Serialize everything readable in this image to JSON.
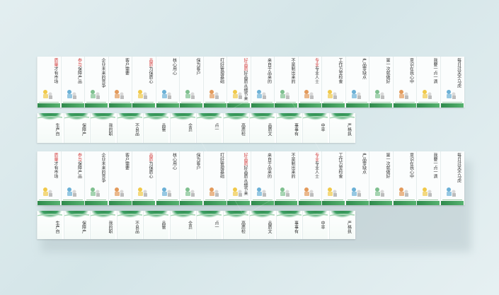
{
  "posters": [
    {
      "red": "质量",
      "text": "才有市场"
    },
    {
      "red": "参与",
      "text": "保障产品"
    },
    {
      "red": "",
      "text": "企业未来的竞争"
    },
    {
      "red": "",
      "text": "客户需要"
    },
    {
      "red": "品质",
      "text": "为保质心"
    },
    {
      "red": "",
      "text": "核心用心"
    },
    {
      "red": "",
      "text": "保为客户"
    },
    {
      "red": "",
      "text": "打好管理基础"
    },
    {
      "red": "好品质",
      "text": "好品质从细节来"
    },
    {
      "red": "",
      "text": "来自于品来的"
    },
    {
      "red": "",
      "text": "不是制出来的"
    },
    {
      "red": "专业",
      "text": "专业人士"
    },
    {
      "red": "",
      "text": "工作万里检查"
    },
    {
      "red": "",
      "text": "产品零缺点"
    },
    {
      "red": "",
      "text": "第一次就做好"
    },
    {
      "red": "",
      "text": "意识在我心中"
    },
    {
      "red": "",
      "text": "我要一点一滴"
    },
    {
      "red": "",
      "text": "每日过关不马虎"
    }
  ],
  "minis": [
    {
      "red": "",
      "text": "生产自"
    },
    {
      "red": "",
      "text": "保障产"
    },
    {
      "red": "",
      "text": "我的职"
    },
    {
      "red": "",
      "text": "不良品"
    },
    {
      "red": "",
      "text": "品管"
    },
    {
      "red": "",
      "text": "全员"
    },
    {
      "red": "",
      "text": "点一"
    },
    {
      "red": "",
      "text": "高质检"
    },
    {
      "red": "",
      "text": "品质文"
    },
    {
      "red": "",
      "text": "事事有"
    },
    {
      "red": "",
      "text": "中率"
    },
    {
      "red": "",
      "text": "严格执"
    }
  ],
  "colors": {
    "accent": "#2f8a4c",
    "text_red": "#d23a3a"
  }
}
